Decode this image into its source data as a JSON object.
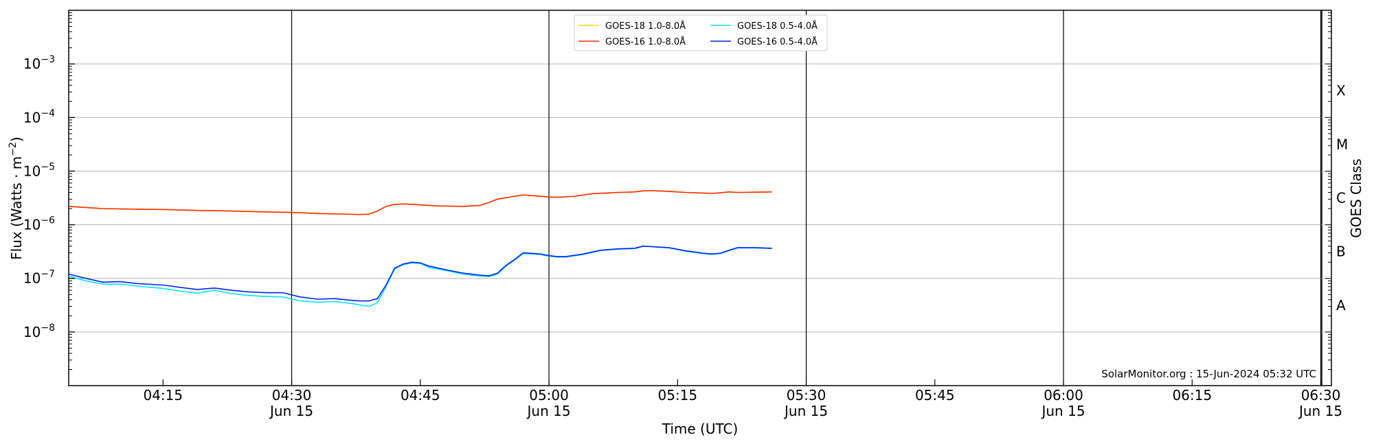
{
  "chart_data": {
    "type": "line",
    "xlabel": "Time (UTC)",
    "ylabel_main": "Flux (Watts · m",
    "ylabel_sup": "−2",
    "ylabel_close": ")",
    "ylabel_right": "GOES Class",
    "y_scale": "log",
    "ylim": [
      1e-09,
      0.01
    ],
    "xlim": [
      "04:04",
      "06:31"
    ],
    "grid": "horizontal",
    "legend_position": "top-center",
    "x_ticks": [
      {
        "time": "04:15",
        "label": "04:15",
        "date": ""
      },
      {
        "time": "04:30",
        "label": "04:30",
        "date": "Jun 15"
      },
      {
        "time": "04:45",
        "label": "04:45",
        "date": ""
      },
      {
        "time": "05:00",
        "label": "05:00",
        "date": "Jun 15"
      },
      {
        "time": "05:15",
        "label": "05:15",
        "date": ""
      },
      {
        "time": "05:30",
        "label": "05:30",
        "date": "Jun 15"
      },
      {
        "time": "05:45",
        "label": "05:45",
        "date": ""
      },
      {
        "time": "06:00",
        "label": "06:00",
        "date": "Jun 15"
      },
      {
        "time": "06:15",
        "label": "06:15",
        "date": ""
      },
      {
        "time": "06:30",
        "label": "06:30",
        "date": "Jun 15"
      }
    ],
    "y_ticks": [
      {
        "value": 1e-08,
        "base": "10",
        "exp": "−8"
      },
      {
        "value": 1e-07,
        "base": "10",
        "exp": "−7"
      },
      {
        "value": 1e-06,
        "base": "10",
        "exp": "−6"
      },
      {
        "value": 1e-05,
        "base": "10",
        "exp": "−5"
      },
      {
        "value": 0.0001,
        "base": "10",
        "exp": "−4"
      },
      {
        "value": 0.001,
        "base": "10",
        "exp": "−3"
      }
    ],
    "goes_classes": [
      {
        "label": "A",
        "value": 1e-08
      },
      {
        "label": "B",
        "value": 1e-07
      },
      {
        "label": "C",
        "value": 1e-06
      },
      {
        "label": "M",
        "value": 1e-05
      },
      {
        "label": "X",
        "value": 0.0001
      }
    ],
    "day_lines": [
      "04:30",
      "05:00",
      "05:30",
      "06:00",
      "06:30"
    ],
    "legend": [
      {
        "label": "GOES-18 1.0-8.0Å",
        "color": "#ffd700"
      },
      {
        "label": "GOES-16 1.0-8.0Å",
        "color": "#ff2a00"
      },
      {
        "label": "GOES-18 0.5-4.0Å",
        "color": "#00e5ff"
      },
      {
        "label": "GOES-16 0.5-4.0Å",
        "color": "#0022ff"
      }
    ],
    "credit": "SolarMonitor.org : 15-Jun-2024 05:32 UTC",
    "series": [
      {
        "name": "GOES-18 1.0-8.0Å",
        "color": "#ffd700",
        "width": 1.6,
        "x": [
          "04:04",
          "04:06",
          "04:08",
          "04:12",
          "04:15",
          "04:19",
          "04:22",
          "04:26",
          "04:30",
          "04:33",
          "04:36",
          "04:38",
          "04:39",
          "04:40",
          "04:41",
          "04:42",
          "04:43",
          "04:45",
          "04:47",
          "04:50",
          "04:52",
          "04:53",
          "04:54",
          "04:56",
          "04:57",
          "04:58",
          "05:00",
          "05:01",
          "05:03",
          "05:05",
          "05:08",
          "05:10",
          "05:11",
          "05:12",
          "05:14",
          "05:16",
          "05:18",
          "05:19",
          "05:20",
          "05:21",
          "05:22",
          "05:24",
          "05:26"
        ],
        "y": [
          2.2e-06,
          2.1e-06,
          2e-06,
          1.95e-06,
          1.93e-06,
          1.85e-06,
          1.82e-06,
          1.75e-06,
          1.7e-06,
          1.62e-06,
          1.58e-06,
          1.55e-06,
          1.58e-06,
          1.8e-06,
          2.2e-06,
          2.4e-06,
          2.45e-06,
          2.35e-06,
          2.25e-06,
          2.2e-06,
          2.3e-06,
          2.6e-06,
          3e-06,
          3.4e-06,
          3.6e-06,
          3.5e-06,
          3.3e-06,
          3.25e-06,
          3.4e-06,
          3.8e-06,
          4e-06,
          4.1e-06,
          4.3e-06,
          4.35e-06,
          4.2e-06,
          4e-06,
          3.9e-06,
          3.85e-06,
          3.95e-06,
          4.1e-06,
          4e-06,
          4.05e-06,
          4.1e-06
        ]
      },
      {
        "name": "GOES-16 1.0-8.0Å",
        "color": "#ff2a00",
        "width": 1.6,
        "x": [
          "04:04",
          "04:06",
          "04:08",
          "04:12",
          "04:15",
          "04:19",
          "04:22",
          "04:26",
          "04:30",
          "04:33",
          "04:36",
          "04:38",
          "04:39",
          "04:40",
          "04:41",
          "04:42",
          "04:43",
          "04:45",
          "04:47",
          "04:50",
          "04:52",
          "04:53",
          "04:54",
          "04:56",
          "04:57",
          "04:58",
          "05:00",
          "05:01",
          "05:03",
          "05:05",
          "05:08",
          "05:10",
          "05:11",
          "05:12",
          "05:14",
          "05:16",
          "05:18",
          "05:19",
          "05:20",
          "05:21",
          "05:22",
          "05:24",
          "05:26"
        ],
        "y": [
          2.2e-06,
          2.1e-06,
          2e-06,
          1.95e-06,
          1.93e-06,
          1.85e-06,
          1.82e-06,
          1.75e-06,
          1.7e-06,
          1.62e-06,
          1.58e-06,
          1.55e-06,
          1.58e-06,
          1.8e-06,
          2.2e-06,
          2.4e-06,
          2.45e-06,
          2.35e-06,
          2.25e-06,
          2.2e-06,
          2.3e-06,
          2.6e-06,
          3e-06,
          3.4e-06,
          3.6e-06,
          3.5e-06,
          3.3e-06,
          3.25e-06,
          3.4e-06,
          3.8e-06,
          4e-06,
          4.1e-06,
          4.3e-06,
          4.35e-06,
          4.2e-06,
          4e-06,
          3.9e-06,
          3.85e-06,
          3.95e-06,
          4.1e-06,
          4e-06,
          4.05e-06,
          4.1e-06
        ]
      },
      {
        "name": "GOES-18 0.5-4.0Å",
        "color": "#00e5ff",
        "width": 1.6,
        "x": [
          "04:04",
          "04:06",
          "04:08",
          "04:10",
          "04:12",
          "04:15",
          "04:17",
          "04:19",
          "04:21",
          "04:23",
          "04:25",
          "04:27",
          "04:29",
          "04:31",
          "04:33",
          "04:35",
          "04:37",
          "04:38",
          "04:39",
          "04:40",
          "04:41",
          "04:42",
          "04:43",
          "04:44",
          "04:45",
          "04:46",
          "04:48",
          "04:50",
          "04:52",
          "04:53",
          "04:54",
          "04:55",
          "04:56",
          "04:57",
          "04:59",
          "05:00",
          "05:01",
          "05:02",
          "05:04",
          "05:06",
          "05:08",
          "05:10",
          "05:11",
          "05:14",
          "05:16",
          "05:18",
          "05:19",
          "05:20",
          "05:21",
          "05:22",
          "05:24",
          "05:26"
        ],
        "y": [
          1.1e-07,
          9e-08,
          7.8e-08,
          7.8e-08,
          7.2e-08,
          6.5e-08,
          5.8e-08,
          5.3e-08,
          6e-08,
          5.2e-08,
          4.8e-08,
          4.6e-08,
          4.5e-08,
          3.8e-08,
          3.6e-08,
          3.7e-08,
          3.4e-08,
          3.2e-08,
          3e-08,
          3.5e-08,
          7e-08,
          1.5e-07,
          1.8e-07,
          1.95e-07,
          1.9e-07,
          1.6e-07,
          1.4e-07,
          1.2e-07,
          1.1e-07,
          1.08e-07,
          1.2e-07,
          1.7e-07,
          2.2e-07,
          2.9e-07,
          2.8e-07,
          2.6e-07,
          2.5e-07,
          2.5e-07,
          2.8e-07,
          3.3e-07,
          3.5e-07,
          3.6e-07,
          4e-07,
          3.7e-07,
          3.2e-07,
          2.9e-07,
          2.8e-07,
          2.9e-07,
          3.3e-07,
          3.7e-07,
          3.7e-07,
          3.6e-07
        ]
      },
      {
        "name": "GOES-16 0.5-4.0Å",
        "color": "#0022ff",
        "width": 1.6,
        "x": [
          "04:04",
          "04:06",
          "04:08",
          "04:10",
          "04:12",
          "04:15",
          "04:17",
          "04:19",
          "04:21",
          "04:23",
          "04:25",
          "04:27",
          "04:29",
          "04:31",
          "04:33",
          "04:35",
          "04:37",
          "04:38",
          "04:39",
          "04:40",
          "04:41",
          "04:42",
          "04:43",
          "04:44",
          "04:45",
          "04:46",
          "04:48",
          "04:50",
          "04:52",
          "04:53",
          "04:54",
          "04:55",
          "04:56",
          "04:57",
          "04:59",
          "05:00",
          "05:01",
          "05:02",
          "05:04",
          "05:06",
          "05:08",
          "05:10",
          "05:11",
          "05:14",
          "05:16",
          "05:18",
          "05:19",
          "05:20",
          "05:21",
          "05:22",
          "05:24",
          "05:26"
        ],
        "y": [
          1.2e-07,
          1e-07,
          8.5e-08,
          8.7e-08,
          8e-08,
          7.5e-08,
          6.8e-08,
          6.2e-08,
          6.6e-08,
          6e-08,
          5.6e-08,
          5.4e-08,
          5.4e-08,
          4.5e-08,
          4.1e-08,
          4.2e-08,
          3.9e-08,
          3.8e-08,
          3.8e-08,
          4.2e-08,
          7.5e-08,
          1.55e-07,
          1.85e-07,
          2e-07,
          1.95e-07,
          1.7e-07,
          1.45e-07,
          1.25e-07,
          1.15e-07,
          1.12e-07,
          1.25e-07,
          1.75e-07,
          2.25e-07,
          3e-07,
          2.85e-07,
          2.65e-07,
          2.55e-07,
          2.55e-07,
          2.85e-07,
          3.35e-07,
          3.55e-07,
          3.65e-07,
          4e-07,
          3.75e-07,
          3.25e-07,
          2.95e-07,
          2.85e-07,
          2.95e-07,
          3.35e-07,
          3.75e-07,
          3.75e-07,
          3.65e-07
        ]
      }
    ]
  }
}
